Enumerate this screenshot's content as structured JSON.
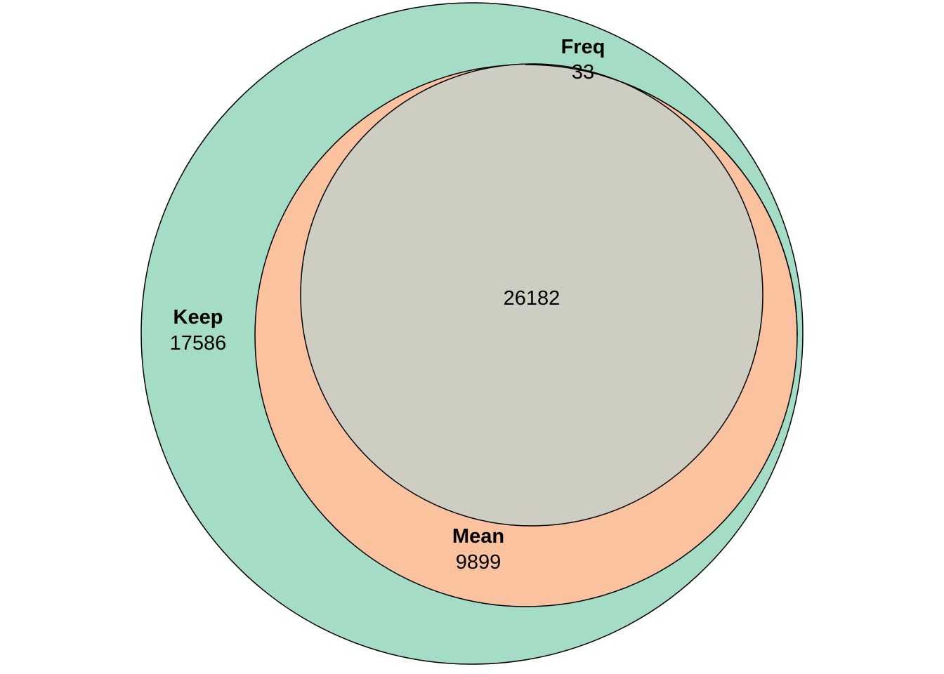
{
  "sets": [
    {
      "id": "keep",
      "label": "Keep",
      "color": "#a5dcc5"
    },
    {
      "id": "mean",
      "label": "Mean",
      "color": "#fac29f"
    },
    {
      "id": "freq",
      "label": "Freq",
      "color": "#cdcec1"
    }
  ],
  "regions": {
    "keep_only": "17586",
    "mean_only": "9899",
    "freq_only": "33",
    "all": "26182"
  }
}
